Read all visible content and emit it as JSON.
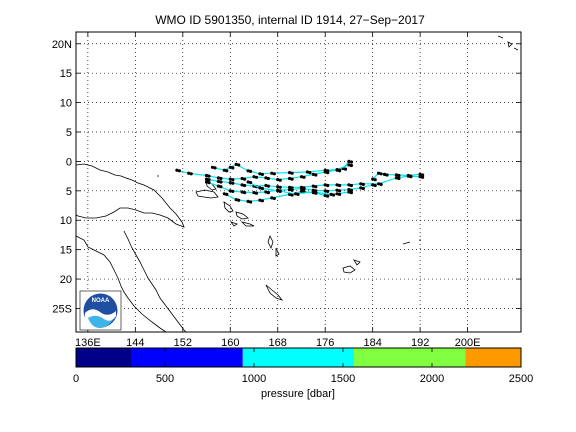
{
  "title": "WMO ID 5901350, internal ID 1914, 27−Sep−2017",
  "map": {
    "lon_range": [
      134,
      209
    ],
    "lat_range": [
      -29,
      22
    ],
    "lat_ticks": [
      {
        "value": 20,
        "label": "20N"
      },
      {
        "value": 15,
        "label": "15"
      },
      {
        "value": 10,
        "label": "10"
      },
      {
        "value": 5,
        "label": "5"
      },
      {
        "value": 0,
        "label": "0"
      },
      {
        "value": -5,
        "label": "5"
      },
      {
        "value": -10,
        "label": "10"
      },
      {
        "value": -15,
        "label": "15"
      },
      {
        "value": -20,
        "label": "20"
      },
      {
        "value": -25,
        "label": "25S"
      }
    ],
    "lon_ticks": [
      {
        "value": 136,
        "label": "136E"
      },
      {
        "value": 144,
        "label": "144"
      },
      {
        "value": 152,
        "label": "152"
      },
      {
        "value": 160,
        "label": "160"
      },
      {
        "value": 168,
        "label": "168"
      },
      {
        "value": 176,
        "label": "176"
      },
      {
        "value": 184,
        "label": "184"
      },
      {
        "value": 192,
        "label": "192"
      },
      {
        "value": 200,
        "label": "200E"
      }
    ],
    "grid": true,
    "track_colors": {
      "marker": "#000000",
      "line": "#00e5ee"
    }
  },
  "colorbar": {
    "label": "pressure [dbar]",
    "range": [
      0,
      2500
    ],
    "tick_values": [
      0,
      500,
      1000,
      1500,
      2000,
      2500
    ],
    "tick_labels": [
      "0",
      "500",
      "1000",
      "1500",
      "2000",
      "2500"
    ],
    "segments": [
      {
        "from": 0,
        "to": 312,
        "color": "#000088"
      },
      {
        "from": 312,
        "to": 937,
        "color": "#0000ff"
      },
      {
        "from": 937,
        "to": 1562,
        "color": "#00ffff"
      },
      {
        "from": 1562,
        "to": 2187,
        "color": "#80ff40"
      },
      {
        "from": 2187,
        "to": 2500,
        "color": "#ff9900"
      }
    ]
  },
  "logo": {
    "text": "NOAA"
  }
}
